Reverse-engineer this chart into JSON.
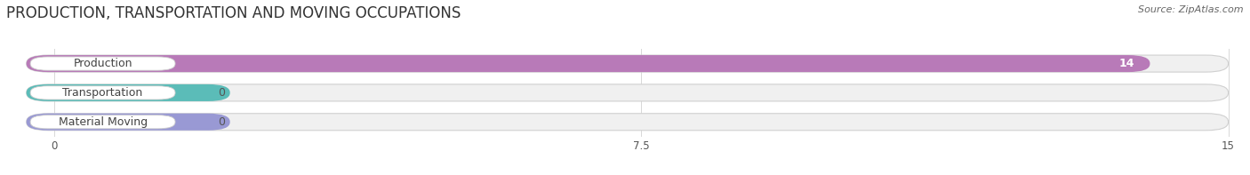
{
  "title": "PRODUCTION, TRANSPORTATION AND MOVING OCCUPATIONS",
  "source": "Source: ZipAtlas.com",
  "categories": [
    "Production",
    "Transportation",
    "Material Moving"
  ],
  "values": [
    14,
    0,
    0
  ],
  "bar_colors": [
    "#b87ab8",
    "#5bbcb8",
    "#9999d4"
  ],
  "xlim": [
    0,
    15
  ],
  "xticks": [
    0,
    7.5,
    15
  ],
  "title_fontsize": 12,
  "label_fontsize": 9,
  "value_fontsize": 9
}
